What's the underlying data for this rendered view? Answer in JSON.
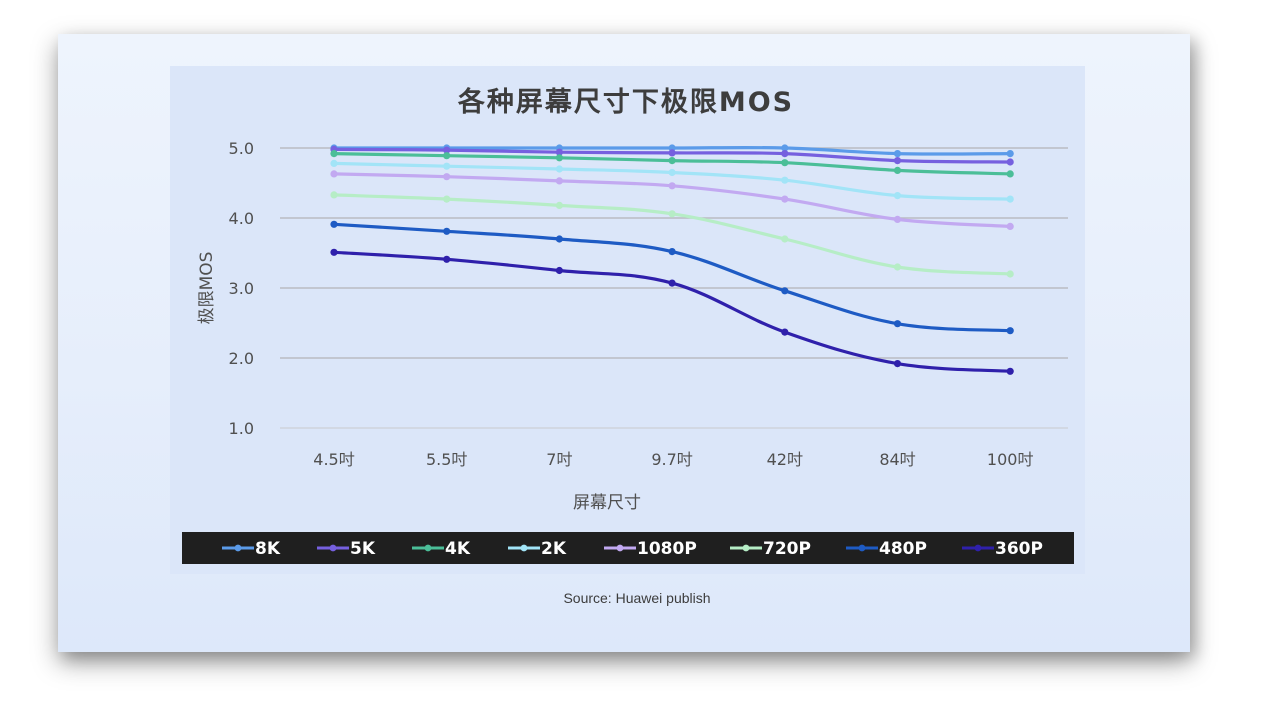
{
  "source": "Source: Huawei publish",
  "chart_data": {
    "type": "line",
    "title": "各种屏幕尺寸下极限MOS",
    "xlabel": "屏幕尺寸",
    "ylabel": "极限MOS",
    "categories": [
      "4.5吋",
      "5.5吋",
      "7吋",
      "9.7吋",
      "42吋",
      "84吋",
      "100吋"
    ],
    "ylim": [
      1.0,
      5.0
    ],
    "yticks": [
      "1.0",
      "2.0",
      "3.0",
      "4.0",
      "5.0"
    ],
    "grid": true,
    "legend_position": "bottom",
    "series": [
      {
        "name": "8K",
        "color": "#5b9be9",
        "values": [
          5.0,
          5.0,
          5.0,
          5.0,
          5.0,
          4.92,
          4.92
        ]
      },
      {
        "name": "5K",
        "color": "#7660df",
        "values": [
          4.98,
          4.97,
          4.94,
          4.93,
          4.92,
          4.82,
          4.8
        ]
      },
      {
        "name": "4K",
        "color": "#4bbe98",
        "values": [
          4.92,
          4.89,
          4.86,
          4.82,
          4.79,
          4.68,
          4.63
        ]
      },
      {
        "name": "2K",
        "color": "#a2e4f7",
        "values": [
          4.78,
          4.74,
          4.7,
          4.65,
          4.54,
          4.32,
          4.27
        ]
      },
      {
        "name": "1080P",
        "color": "#c2a9f1",
        "values": [
          4.63,
          4.59,
          4.53,
          4.46,
          4.27,
          3.98,
          3.88
        ]
      },
      {
        "name": "720P",
        "color": "#b6edc6",
        "values": [
          4.33,
          4.27,
          4.18,
          4.06,
          3.7,
          3.3,
          3.2
        ]
      },
      {
        "name": "480P",
        "color": "#1e5bc4",
        "values": [
          3.91,
          3.81,
          3.7,
          3.52,
          2.96,
          2.49,
          2.39
        ]
      },
      {
        "name": "360P",
        "color": "#2f20ab",
        "values": [
          3.51,
          3.41,
          3.25,
          3.07,
          2.37,
          1.92,
          1.81
        ]
      }
    ]
  }
}
